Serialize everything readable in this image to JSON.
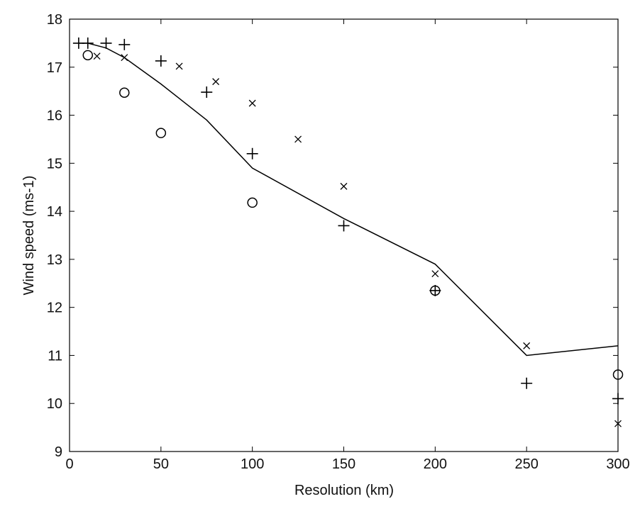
{
  "chart_data": {
    "type": "line",
    "xlabel": "Resolution (km)",
    "ylabel": "Wind speed (ms-1)",
    "xlim": [
      0,
      300
    ],
    "xticks": [
      0,
      50,
      100,
      150,
      200,
      250,
      300
    ],
    "ylim": [
      9,
      18
    ],
    "yticks": [
      9,
      10,
      11,
      12,
      13,
      14,
      15,
      16,
      17,
      18
    ],
    "grid": false,
    "series": [
      {
        "style": "line",
        "color": "#000000",
        "x": [
          5,
          10,
          20,
          30,
          50,
          75,
          100,
          150,
          200,
          250,
          300
        ],
        "values": [
          17.5,
          17.5,
          17.4,
          17.2,
          16.65,
          15.9,
          14.9,
          13.85,
          12.9,
          11.0,
          11.2
        ]
      },
      {
        "style": "plus",
        "color": "#000000",
        "x": [
          5,
          10,
          20,
          30,
          50,
          75,
          100,
          150,
          200,
          250,
          300
        ],
        "values": [
          17.5,
          17.5,
          17.5,
          17.47,
          17.13,
          16.48,
          15.2,
          13.7,
          12.35,
          10.42,
          10.1
        ]
      },
      {
        "style": "circle",
        "color": "#000000",
        "x": [
          10,
          30,
          50,
          100,
          200,
          300
        ],
        "values": [
          17.25,
          16.47,
          15.63,
          14.18,
          12.35,
          10.6
        ]
      },
      {
        "style": "cross",
        "color": "#000000",
        "x": [
          15,
          30,
          60,
          80,
          100,
          125,
          150,
          200,
          250,
          300
        ],
        "values": [
          17.23,
          17.2,
          17.02,
          16.7,
          16.25,
          15.5,
          14.52,
          12.7,
          11.2,
          9.58
        ]
      }
    ]
  }
}
